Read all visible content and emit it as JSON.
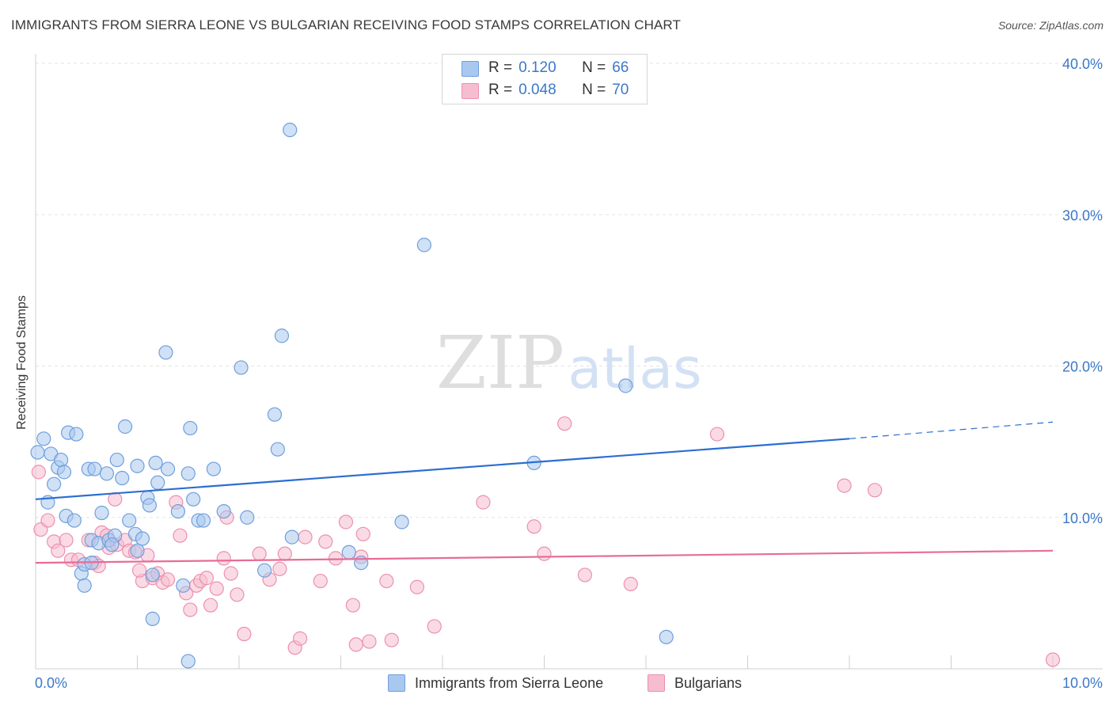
{
  "title": "IMMIGRANTS FROM SIERRA LEONE VS BULGARIAN RECEIVING FOOD STAMPS CORRELATION CHART",
  "source": "Source: ZipAtlas.com",
  "watermark": {
    "zip": "ZIP",
    "atlas": "atlas"
  },
  "legend": {
    "r_label": "R =",
    "n_label": "N =",
    "series1": {
      "r": "0.120",
      "n": "66"
    },
    "series2": {
      "r": "0.048",
      "n": "70"
    }
  },
  "colors": {
    "blue_fill": "#a9c8ef",
    "blue_stroke": "#6f9fdc",
    "blue_line": "#2b6ed1",
    "pink_fill": "#f6bdd0",
    "pink_stroke": "#ec90ad",
    "pink_line": "#e76c98",
    "axis_text": "#3b78c9"
  },
  "chart_data": {
    "type": "scatter",
    "title": "IMMIGRANTS FROM SIERRA LEONE VS BULGARIAN RECEIVING FOOD STAMPS CORRELATION CHART",
    "xlabel": "",
    "ylabel": "Receiving Food Stamps",
    "xlim": [
      0,
      10
    ],
    "ylim": [
      0,
      40
    ],
    "x_ticks": [
      "0.0%",
      "10.0%"
    ],
    "y_ticks": [
      {
        "value": 10,
        "label": "10.0%"
      },
      {
        "value": 20,
        "label": "20.0%"
      },
      {
        "value": 30,
        "label": "30.0%"
      },
      {
        "value": 40,
        "label": "40.0%"
      }
    ],
    "series": [
      {
        "name": "Immigrants from Sierra Leone",
        "color": "blue",
        "trend": {
          "x0": 0,
          "y0": 11.2,
          "x1": 8.0,
          "y1": 15.2,
          "dash_to_x": 10.0,
          "dash_to_y": 16.3
        },
        "points": [
          [
            0.02,
            14.3
          ],
          [
            0.08,
            15.2
          ],
          [
            0.15,
            14.2
          ],
          [
            0.18,
            12.2
          ],
          [
            0.22,
            13.3
          ],
          [
            0.25,
            13.8
          ],
          [
            0.28,
            13.0
          ],
          [
            0.32,
            15.6
          ],
          [
            0.4,
            15.5
          ],
          [
            0.12,
            11.0
          ],
          [
            0.3,
            10.1
          ],
          [
            0.38,
            9.8
          ],
          [
            0.52,
            13.2
          ],
          [
            0.58,
            13.2
          ],
          [
            0.65,
            10.3
          ],
          [
            0.7,
            12.9
          ],
          [
            0.8,
            13.8
          ],
          [
            0.85,
            12.6
          ],
          [
            0.88,
            16.0
          ],
          [
            0.55,
            8.5
          ],
          [
            0.62,
            8.3
          ],
          [
            0.72,
            8.5
          ],
          [
            0.78,
            8.8
          ],
          [
            0.75,
            8.2
          ],
          [
            0.45,
            6.3
          ],
          [
            0.48,
            6.9
          ],
          [
            0.55,
            7.0
          ],
          [
            0.48,
            5.5
          ],
          [
            0.92,
            9.8
          ],
          [
            0.98,
            8.9
          ],
          [
            1.0,
            7.8
          ],
          [
            1.05,
            8.6
          ],
          [
            1.0,
            13.4
          ],
          [
            1.1,
            11.3
          ],
          [
            1.12,
            10.8
          ],
          [
            1.18,
            13.6
          ],
          [
            1.2,
            12.3
          ],
          [
            1.3,
            13.2
          ],
          [
            1.28,
            20.9
          ],
          [
            1.4,
            10.4
          ],
          [
            1.5,
            12.9
          ],
          [
            1.52,
            15.9
          ],
          [
            1.55,
            11.2
          ],
          [
            1.6,
            9.8
          ],
          [
            1.65,
            9.8
          ],
          [
            1.75,
            13.2
          ],
          [
            1.85,
            10.4
          ],
          [
            2.02,
            19.9
          ],
          [
            2.08,
            10.0
          ],
          [
            2.25,
            6.5
          ],
          [
            2.35,
            16.8
          ],
          [
            2.38,
            14.5
          ],
          [
            2.42,
            22.0
          ],
          [
            2.5,
            35.6
          ],
          [
            2.52,
            8.7
          ],
          [
            3.08,
            7.7
          ],
          [
            3.2,
            7.0
          ],
          [
            3.6,
            9.7
          ],
          [
            3.82,
            28.0
          ],
          [
            4.9,
            13.6
          ],
          [
            5.8,
            18.7
          ],
          [
            6.2,
            2.1
          ],
          [
            1.15,
            6.2
          ],
          [
            1.15,
            3.3
          ],
          [
            1.45,
            5.5
          ],
          [
            1.5,
            0.5
          ]
        ]
      },
      {
        "name": "Bulgarians",
        "color": "pink",
        "trend": {
          "x0": 0,
          "y0": 7.0,
          "x1": 10.0,
          "y1": 7.8
        },
        "points": [
          [
            0.03,
            13.0
          ],
          [
            0.05,
            9.2
          ],
          [
            0.12,
            9.8
          ],
          [
            0.18,
            8.4
          ],
          [
            0.22,
            7.8
          ],
          [
            0.3,
            8.5
          ],
          [
            0.35,
            7.2
          ],
          [
            0.42,
            7.2
          ],
          [
            0.52,
            8.5
          ],
          [
            0.58,
            7.0
          ],
          [
            0.62,
            6.8
          ],
          [
            0.65,
            9.0
          ],
          [
            0.7,
            8.8
          ],
          [
            0.72,
            8.0
          ],
          [
            0.8,
            8.2
          ],
          [
            0.78,
            11.2
          ],
          [
            0.88,
            8.5
          ],
          [
            0.92,
            7.8
          ],
          [
            0.98,
            7.7
          ],
          [
            1.05,
            5.8
          ],
          [
            1.02,
            6.5
          ],
          [
            1.1,
            7.5
          ],
          [
            1.15,
            6.0
          ],
          [
            1.2,
            6.3
          ],
          [
            1.25,
            5.7
          ],
          [
            1.3,
            5.9
          ],
          [
            1.38,
            11.0
          ],
          [
            1.42,
            8.8
          ],
          [
            1.48,
            5.0
          ],
          [
            1.52,
            3.9
          ],
          [
            1.58,
            5.5
          ],
          [
            1.62,
            5.8
          ],
          [
            1.68,
            6.0
          ],
          [
            1.72,
            4.2
          ],
          [
            1.78,
            5.3
          ],
          [
            1.85,
            7.3
          ],
          [
            1.88,
            10.0
          ],
          [
            1.92,
            6.3
          ],
          [
            1.98,
            4.9
          ],
          [
            2.05,
            2.3
          ],
          [
            2.2,
            7.6
          ],
          [
            2.3,
            5.9
          ],
          [
            2.4,
            6.6
          ],
          [
            2.45,
            7.6
          ],
          [
            2.55,
            1.4
          ],
          [
            2.6,
            2.0
          ],
          [
            2.65,
            8.7
          ],
          [
            2.8,
            5.8
          ],
          [
            2.85,
            8.4
          ],
          [
            2.95,
            7.3
          ],
          [
            3.05,
            9.7
          ],
          [
            3.12,
            4.2
          ],
          [
            3.2,
            7.4
          ],
          [
            3.22,
            8.9
          ],
          [
            3.28,
            1.8
          ],
          [
            3.45,
            5.8
          ],
          [
            3.5,
            1.9
          ],
          [
            3.75,
            5.4
          ],
          [
            3.92,
            2.8
          ],
          [
            4.4,
            11.0
          ],
          [
            4.9,
            9.4
          ],
          [
            5.0,
            7.6
          ],
          [
            5.2,
            16.2
          ],
          [
            5.4,
            6.2
          ],
          [
            5.85,
            5.6
          ],
          [
            6.7,
            15.5
          ],
          [
            7.95,
            12.1
          ],
          [
            8.25,
            11.8
          ],
          [
            10.0,
            0.6
          ],
          [
            3.15,
            1.6
          ]
        ]
      }
    ],
    "legend_position": "top-center"
  }
}
